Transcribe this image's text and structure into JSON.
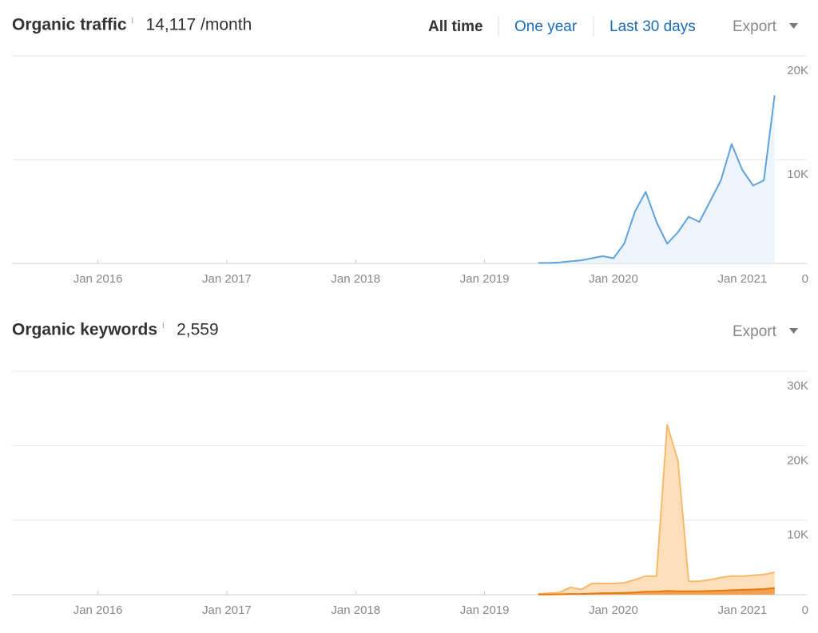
{
  "chart_data": [
    {
      "type": "area",
      "title": "Organic traffic",
      "info": "i",
      "summary": "14,117 /month",
      "buttons": [
        "All time",
        "One year",
        "Last 30 days"
      ],
      "export": "Export",
      "x": [
        "2019-06",
        "2019-07",
        "2019-08",
        "2019-09",
        "2019-10",
        "2019-11",
        "2019-12",
        "2020-01",
        "2020-02",
        "2020-03",
        "2020-04",
        "2020-05",
        "2020-06",
        "2020-07",
        "2020-08",
        "2020-09",
        "2020-10",
        "2020-11",
        "2020-12",
        "2021-01",
        "2021-02",
        "2021-03",
        "2021-04"
      ],
      "series": [
        {
          "color": "#5fa3dc",
          "fill": "#eef4fb",
          "values": [
            50,
            50,
            100,
            200,
            300,
            500,
            700,
            500,
            1900,
            5000,
            6900,
            4000,
            1900,
            3000,
            4500,
            4000,
            6000,
            8000,
            11500,
            9000,
            7500,
            8000,
            16200
          ]
        }
      ],
      "xlim": [
        "2015-05",
        "2021-07"
      ],
      "xticks": [
        {
          "value": "2016-01",
          "label": "Jan 2016"
        },
        {
          "value": "2017-01",
          "label": "Jan 2017"
        },
        {
          "value": "2018-01",
          "label": "Jan 2018"
        },
        {
          "value": "2019-01",
          "label": "Jan 2019"
        },
        {
          "value": "2020-01",
          "label": "Jan 2020"
        },
        {
          "value": "2021-01",
          "label": "Jan 2021"
        }
      ],
      "ylim": [
        0,
        20000
      ],
      "yticks": [
        0,
        {
          "value": 10000,
          "label": "10K"
        },
        {
          "value": 20000,
          "label": "20K"
        }
      ],
      "grid": true
    },
    {
      "type": "area",
      "title": "Organic keywords",
      "info": "i",
      "summary": "2,559",
      "export": "Export",
      "x": [
        "2019-06",
        "2019-07",
        "2019-08",
        "2019-09",
        "2019-10",
        "2019-11",
        "2019-12",
        "2020-01",
        "2020-02",
        "2020-03",
        "2020-04",
        "2020-05",
        "2020-06",
        "2020-07",
        "2020-08",
        "2020-09",
        "2020-10",
        "2020-11",
        "2020-12",
        "2021-01",
        "2021-02",
        "2021-03",
        "2021-04"
      ],
      "series": [
        {
          "color": "#f8b96a",
          "fill": "#fde0bb",
          "values": [
            100,
            200,
            300,
            1000,
            700,
            1500,
            1500,
            1500,
            1600,
            2000,
            2500,
            2500,
            22800,
            18000,
            1800,
            1800,
            2000,
            2300,
            2500,
            2500,
            2600,
            2700,
            3000
          ]
        },
        {
          "color": "#e8780b",
          "fill": "#f0a050",
          "values": [
            20,
            30,
            50,
            100,
            100,
            150,
            200,
            200,
            250,
            300,
            400,
            400,
            500,
            450,
            450,
            450,
            500,
            550,
            600,
            650,
            700,
            750,
            900
          ]
        }
      ],
      "xlim": [
        "2015-05",
        "2021-07"
      ],
      "xticks": [
        {
          "value": "2016-01",
          "label": "Jan 2016"
        },
        {
          "value": "2017-01",
          "label": "Jan 2017"
        },
        {
          "value": "2018-01",
          "label": "Jan 2018"
        },
        {
          "value": "2019-01",
          "label": "Jan 2019"
        },
        {
          "value": "2020-01",
          "label": "Jan 2020"
        },
        {
          "value": "2021-01",
          "label": "Jan 2021"
        }
      ],
      "ylim": [
        0,
        30000
      ],
      "yticks": [
        0,
        {
          "value": 10000,
          "label": "10K"
        },
        {
          "value": 20000,
          "label": "20K"
        },
        {
          "value": 30000,
          "label": "30K"
        }
      ],
      "grid": true
    }
  ]
}
